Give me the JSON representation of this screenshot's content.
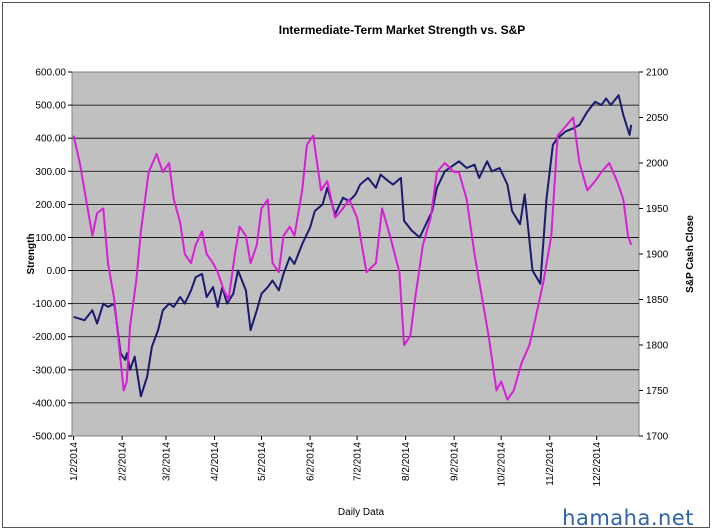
{
  "chart_data": {
    "type": "line",
    "title": "Intermediate-Term Market Strength vs. S&P",
    "xlabel": "Daily Data",
    "ylabel": "Strength",
    "y2label": "S&P Cash Close",
    "ylim": [
      -500,
      600
    ],
    "y2lim": [
      1700,
      2100
    ],
    "yticks": [
      "600.00",
      "500.00",
      "400.00",
      "300.00",
      "200.00",
      "100.00",
      "0.00",
      "-100.00",
      "-200.00",
      "-300.00",
      "-400.00",
      "-500.00"
    ],
    "y2ticks": [
      "2100",
      "2050",
      "2000",
      "1950",
      "1900",
      "1850",
      "1800",
      "1750",
      "1700"
    ],
    "xticks": [
      "1/2/2014",
      "2/2/2014",
      "3/2/2014",
      "4/2/2014",
      "5/2/2014",
      "6/2/2014",
      "7/2/2014",
      "8/2/2014",
      "9/2/2014",
      "10/2/2014",
      "11/2/2014",
      "12/2/2014"
    ],
    "grid": true,
    "legend": "none",
    "series": [
      {
        "axis": "left",
        "color": "#1a1a6e",
        "x": [
          "2014-01-02",
          "2014-01-09",
          "2014-01-14",
          "2014-01-17",
          "2014-01-21",
          "2014-01-24",
          "2014-01-28",
          "2014-02-01",
          "2014-02-04",
          "2014-02-05",
          "2014-02-07",
          "2014-02-10",
          "2014-02-14",
          "2014-02-18",
          "2014-02-21",
          "2014-02-25",
          "2014-02-28",
          "2014-03-04",
          "2014-03-07",
          "2014-03-11",
          "2014-03-14",
          "2014-03-18",
          "2014-03-21",
          "2014-03-25",
          "2014-03-28",
          "2014-04-01",
          "2014-04-04",
          "2014-04-07",
          "2014-04-10",
          "2014-04-14",
          "2014-04-17",
          "2014-04-22",
          "2014-04-25",
          "2014-04-29",
          "2014-05-02",
          "2014-05-06",
          "2014-05-09",
          "2014-05-13",
          "2014-05-16",
          "2014-05-20",
          "2014-05-23",
          "2014-05-28",
          "2014-06-02",
          "2014-06-05",
          "2014-06-10",
          "2014-06-13",
          "2014-06-18",
          "2014-06-23",
          "2014-06-27",
          "2014-07-01",
          "2014-07-04",
          "2014-07-09",
          "2014-07-14",
          "2014-07-17",
          "2014-07-22",
          "2014-07-25",
          "2014-07-30",
          "2014-08-01",
          "2014-08-06",
          "2014-08-11",
          "2014-08-14",
          "2014-08-19",
          "2014-08-22",
          "2014-08-27",
          "2014-09-02",
          "2014-09-05",
          "2014-09-10",
          "2014-09-15",
          "2014-09-18",
          "2014-09-23",
          "2014-09-26",
          "2014-10-01",
          "2014-10-06",
          "2014-10-09",
          "2014-10-14",
          "2014-10-17",
          "2014-10-22",
          "2014-10-27",
          "2014-10-31",
          "2014-11-04",
          "2014-11-07",
          "2014-11-12",
          "2014-11-17",
          "2014-11-21",
          "2014-11-26",
          "2014-12-01",
          "2014-12-05",
          "2014-12-08",
          "2014-12-11",
          "2014-12-16",
          "2014-12-19",
          "2014-12-23",
          "2014-12-24"
        ],
        "values": [
          -140,
          -150,
          -120,
          -160,
          -100,
          -110,
          -100,
          -250,
          -270,
          -250,
          -300,
          -260,
          -380,
          -320,
          -230,
          -180,
          -120,
          -100,
          -110,
          -80,
          -100,
          -60,
          -20,
          -10,
          -80,
          -50,
          -110,
          -50,
          -100,
          -70,
          0,
          -60,
          -180,
          -120,
          -70,
          -50,
          -30,
          -60,
          -10,
          40,
          20,
          80,
          130,
          180,
          200,
          250,
          170,
          220,
          210,
          230,
          260,
          280,
          250,
          290,
          270,
          260,
          280,
          150,
          120,
          100,
          130,
          180,
          250,
          300,
          320,
          330,
          310,
          320,
          280,
          330,
          300,
          310,
          260,
          180,
          140,
          230,
          0,
          -40,
          220,
          380,
          400,
          420,
          430,
          440,
          480,
          510,
          500,
          520,
          500,
          530,
          470,
          410,
          440
        ]
      },
      {
        "axis": "right",
        "color": "#d81fd8",
        "x": [
          "2014-01-02",
          "2014-01-06",
          "2014-01-10",
          "2014-01-14",
          "2014-01-17",
          "2014-01-21",
          "2014-01-24",
          "2014-01-28",
          "2014-01-31",
          "2014-02-03",
          "2014-02-05",
          "2014-02-07",
          "2014-02-11",
          "2014-02-14",
          "2014-02-19",
          "2014-02-24",
          "2014-02-28",
          "2014-03-04",
          "2014-03-07",
          "2014-03-11",
          "2014-03-14",
          "2014-03-18",
          "2014-03-21",
          "2014-03-25",
          "2014-03-28",
          "2014-04-01",
          "2014-04-04",
          "2014-04-08",
          "2014-04-11",
          "2014-04-15",
          "2014-04-18",
          "2014-04-22",
          "2014-04-25",
          "2014-04-29",
          "2014-05-02",
          "2014-05-06",
          "2014-05-09",
          "2014-05-13",
          "2014-05-16",
          "2014-05-20",
          "2014-05-23",
          "2014-05-28",
          "2014-05-31",
          "2014-06-04",
          "2014-06-09",
          "2014-06-13",
          "2014-06-18",
          "2014-06-23",
          "2014-06-27",
          "2014-07-02",
          "2014-07-08",
          "2014-07-14",
          "2014-07-18",
          "2014-07-23",
          "2014-07-29",
          "2014-08-01",
          "2014-08-05",
          "2014-08-08",
          "2014-08-13",
          "2014-08-18",
          "2014-08-22",
          "2014-08-27",
          "2014-09-02",
          "2014-09-05",
          "2014-09-10",
          "2014-09-15",
          "2014-09-19",
          "2014-09-24",
          "2014-09-29",
          "2014-10-02",
          "2014-10-06",
          "2014-10-10",
          "2014-10-15",
          "2014-10-20",
          "2014-10-24",
          "2014-10-29",
          "2014-11-03",
          "2014-11-07",
          "2014-11-12",
          "2014-11-17",
          "2014-11-21",
          "2014-11-26",
          "2014-12-01",
          "2014-12-05",
          "2014-12-10",
          "2014-12-15",
          "2014-12-19",
          "2014-12-22",
          "2014-12-24"
        ],
        "values": [
          2030,
          2000,
          1960,
          1920,
          1945,
          1950,
          1890,
          1850,
          1800,
          1750,
          1760,
          1820,
          1870,
          1925,
          1990,
          2010,
          1990,
          2000,
          1960,
          1935,
          1900,
          1890,
          1910,
          1925,
          1900,
          1890,
          1880,
          1860,
          1850,
          1900,
          1930,
          1920,
          1890,
          1910,
          1950,
          1960,
          1890,
          1880,
          1920,
          1930,
          1920,
          1970,
          2020,
          2030,
          1970,
          1980,
          1940,
          1950,
          1960,
          1940,
          1880,
          1890,
          1950,
          1920,
          1880,
          1800,
          1810,
          1850,
          1910,
          1940,
          1990,
          2000,
          1990,
          1990,
          1960,
          1900,
          1860,
          1810,
          1750,
          1760,
          1740,
          1750,
          1780,
          1800,
          1830,
          1870,
          1920,
          2030,
          2040,
          2050,
          2000,
          1970,
          1980,
          1990,
          2000,
          1980,
          1960,
          1920,
          1910
        ]
      }
    ]
  }
}
